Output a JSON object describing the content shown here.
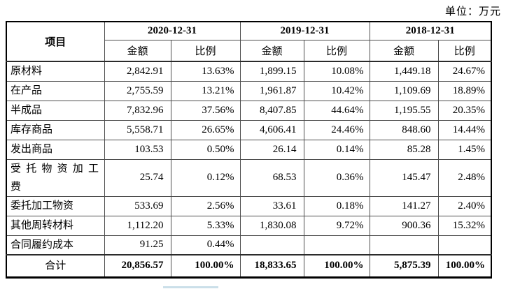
{
  "unit_label": "单位：万元",
  "table": {
    "item_header": "项目",
    "periods": [
      "2020-12-31",
      "2019-12-31",
      "2018-12-31"
    ],
    "amount_label": "金额",
    "ratio_label": "比例",
    "rows": [
      {
        "label": "原材料",
        "values": [
          "2,842.91",
          "13.63%",
          "1,899.15",
          "10.08%",
          "1,449.18",
          "24.67%"
        ]
      },
      {
        "label": "在产品",
        "values": [
          "2,755.59",
          "13.21%",
          "1,961.87",
          "10.42%",
          "1,109.69",
          "18.89%"
        ]
      },
      {
        "label": "半成品",
        "values": [
          "7,832.96",
          "37.56%",
          "8,407.85",
          "44.64%",
          "1,195.55",
          "20.35%"
        ]
      },
      {
        "label": "库存商品",
        "values": [
          "5,558.71",
          "26.65%",
          "4,606.41",
          "24.46%",
          "848.60",
          "14.44%"
        ]
      },
      {
        "label": "发出商品",
        "values": [
          "103.53",
          "0.50%",
          "26.14",
          "0.14%",
          "85.28",
          "1.45%"
        ]
      },
      {
        "label": "受托物资加工费",
        "values": [
          "25.74",
          "0.12%",
          "68.53",
          "0.36%",
          "145.47",
          "2.48%"
        ]
      },
      {
        "label": "委托加工物资",
        "values": [
          "533.69",
          "2.56%",
          "33.61",
          "0.18%",
          "141.27",
          "2.40%"
        ]
      },
      {
        "label": "其他周转材料",
        "values": [
          "1,112.20",
          "5.33%",
          "1,830.08",
          "9.72%",
          "900.36",
          "15.32%"
        ]
      },
      {
        "label": "合同履约成本",
        "values": [
          "91.25",
          "0.44%",
          "",
          "",
          "",
          ""
        ]
      }
    ],
    "total_row": {
      "label": "合计",
      "values": [
        "20,856.57",
        "100.00%",
        "18,833.65",
        "100.00%",
        "5,875.39",
        "100.00%"
      ]
    }
  },
  "artifact_color": "#cbdfe9"
}
